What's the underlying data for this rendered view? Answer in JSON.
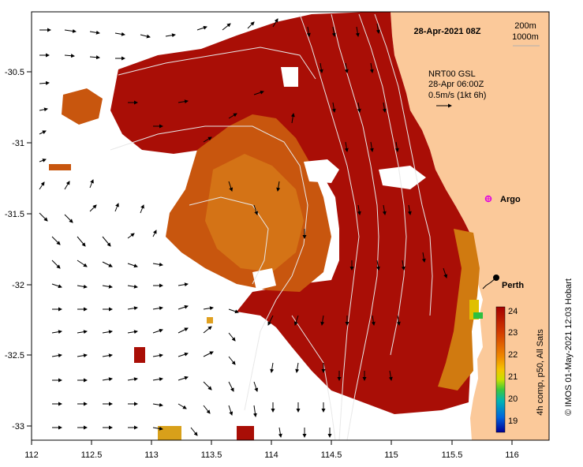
{
  "map": {
    "timestamp": "28-Apr-2021 08Z",
    "isobath_legend": [
      "200m",
      "1000m"
    ],
    "vector_legend": {
      "line1": "NRT00 GSL",
      "line2": "28-Apr 06:00Z",
      "line3": "0.5m/s (1kt 6h)"
    },
    "places": {
      "argo": "Argo",
      "perth": "Perth"
    },
    "credit": "© IMOS 01-May-2021 12:03 Hobart",
    "extent": {
      "lon_min": 112,
      "lon_max": 116.3,
      "lat_min": -33.12,
      "lat_max": -30.08
    },
    "lon_ticks": [
      "112",
      "112.5",
      "113",
      "113.5",
      "114",
      "114.5",
      "115",
      "115.5",
      "116"
    ],
    "lat_ticks": [
      "-30.5",
      "-31",
      "-31.5",
      "-32",
      "-32.5",
      "-33"
    ],
    "colors": {
      "land": "#fbc99a",
      "sst_hot": "#a90e06",
      "sst_warm": "#c8560e",
      "sst_mid": "#e0a020",
      "no_data": "#ffffff"
    }
  },
  "colorbar": {
    "label": "4h comp, p50, All Sats",
    "ticks": [
      "24",
      "23",
      "22",
      "21",
      "20",
      "19"
    ],
    "stops": [
      "#a50000",
      "#d23a00",
      "#f08a00",
      "#f5c400",
      "#c8e000",
      "#3cc83c",
      "#00b4b4",
      "#0064dc",
      "#000096"
    ]
  }
}
